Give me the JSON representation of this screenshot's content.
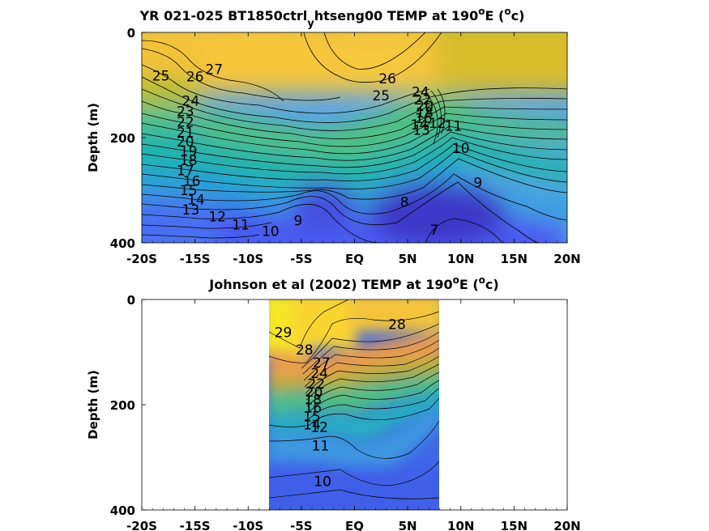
{
  "chart_data": [
    {
      "type": "contour",
      "title_main": "YR 021-025 BT1850ctrl",
      "title_sub": "y",
      "title_rest": "htseng00 TEMP at 190",
      "title_deg": "o",
      "title_tail": "E (",
      "title_unit_o": "o",
      "title_unit": "c)",
      "ylabel": "Depth (m)",
      "x_ticks": [
        "-20S",
        "-15S",
        "-10S",
        "-5S",
        "EQ",
        "5N",
        "10N",
        "15N",
        "20N"
      ],
      "x_tick_values": [
        -20,
        -15,
        -10,
        -5,
        0,
        5,
        10,
        15,
        20
      ],
      "y_ticks": [
        "0",
        "200",
        "400"
      ],
      "y_tick_values": [
        0,
        200,
        400
      ],
      "xlim": [
        -20,
        20
      ],
      "ylim": [
        0,
        400
      ],
      "y_reversed": true,
      "data_x_range": [
        -20,
        20
      ],
      "contour_labels": [
        {
          "text": "25",
          "x": -18.2,
          "y": 82
        },
        {
          "text": "26",
          "x": -15.0,
          "y": 84
        },
        {
          "text": "27",
          "x": -13.2,
          "y": 70
        },
        {
          "text": "24",
          "x": -15.4,
          "y": 130
        },
        {
          "text": "23",
          "x": -15.9,
          "y": 150
        },
        {
          "text": "22",
          "x": -15.9,
          "y": 170
        },
        {
          "text": "21",
          "x": -15.9,
          "y": 190
        },
        {
          "text": "20",
          "x": -15.9,
          "y": 208
        },
        {
          "text": "19",
          "x": -15.6,
          "y": 225
        },
        {
          "text": "18",
          "x": -15.6,
          "y": 243
        },
        {
          "text": "17",
          "x": -15.9,
          "y": 262
        },
        {
          "text": "16",
          "x": -15.3,
          "y": 282
        },
        {
          "text": "15",
          "x": -15.6,
          "y": 300
        },
        {
          "text": "14",
          "x": -14.9,
          "y": 318
        },
        {
          "text": "13",
          "x": -15.4,
          "y": 337
        },
        {
          "text": "12",
          "x": -12.9,
          "y": 350
        },
        {
          "text": "11",
          "x": -10.7,
          "y": 365
        },
        {
          "text": "10",
          "x": -7.9,
          "y": 378
        },
        {
          "text": "9",
          "x": -5.3,
          "y": 358
        },
        {
          "text": "26",
          "x": 3.1,
          "y": 88
        },
        {
          "text": "25",
          "x": 2.5,
          "y": 120
        },
        {
          "text": "24",
          "x": 6.2,
          "y": 113
        },
        {
          "text": "22",
          "x": 6.4,
          "y": 128
        },
        {
          "text": "20",
          "x": 6.6,
          "y": 140
        },
        {
          "text": "18",
          "x": 6.6,
          "y": 152
        },
        {
          "text": "16",
          "x": 6.5,
          "y": 163
        },
        {
          "text": "14",
          "x": 6.1,
          "y": 175
        },
        {
          "text": "13",
          "x": 6.3,
          "y": 185
        },
        {
          "text": "12",
          "x": 7.8,
          "y": 172
        },
        {
          "text": "11",
          "x": 9.3,
          "y": 178
        },
        {
          "text": "10",
          "x": 10.0,
          "y": 220
        },
        {
          "text": "9",
          "x": 11.6,
          "y": 285
        },
        {
          "text": "8",
          "x": 4.7,
          "y": 322
        },
        {
          "text": "7",
          "x": 7.5,
          "y": 375
        }
      ]
    },
    {
      "type": "contour",
      "title_main": "Johnson et al (2002) TEMP at 190",
      "title_deg": "o",
      "title_tail": "E (",
      "title_unit_o": "o",
      "title_unit": "c)",
      "ylabel": "Depth (m)",
      "x_ticks": [
        "-20S",
        "-15S",
        "-10S",
        "-5S",
        "EQ",
        "5N",
        "10N",
        "15N",
        "20N"
      ],
      "x_tick_values": [
        -20,
        -15,
        -10,
        -5,
        0,
        5,
        10,
        15,
        20
      ],
      "y_ticks": [
        "0",
        "200",
        "400"
      ],
      "y_tick_values": [
        0,
        200,
        400
      ],
      "xlim": [
        -20,
        20
      ],
      "ylim": [
        0,
        400
      ],
      "y_reversed": true,
      "data_x_range": [
        -8,
        8
      ],
      "contour_labels": [
        {
          "text": "29",
          "x": -6.7,
          "y": 62
        },
        {
          "text": "28",
          "x": -4.7,
          "y": 95
        },
        {
          "text": "28",
          "x": 4.0,
          "y": 47
        },
        {
          "text": "27",
          "x": -3.1,
          "y": 120
        },
        {
          "text": "24",
          "x": -3.3,
          "y": 140
        },
        {
          "text": "22",
          "x": -3.6,
          "y": 160
        },
        {
          "text": "20",
          "x": -3.8,
          "y": 175
        },
        {
          "text": "18",
          "x": -3.9,
          "y": 190
        },
        {
          "text": "16",
          "x": -3.9,
          "y": 205
        },
        {
          "text": "15",
          "x": -4.0,
          "y": 222
        },
        {
          "text": "14",
          "x": -4.0,
          "y": 238
        },
        {
          "text": "12",
          "x": -3.3,
          "y": 242
        },
        {
          "text": "11",
          "x": -3.2,
          "y": 278
        },
        {
          "text": "10",
          "x": -3.0,
          "y": 345
        }
      ]
    }
  ]
}
